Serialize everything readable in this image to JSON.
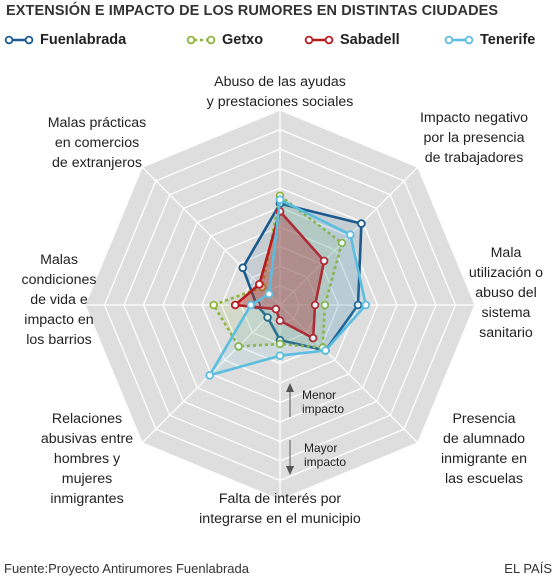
{
  "title": "EXTENSIÓN E IMPACTO DE LOS RUMORES EN DISTINTAS CIUDADES",
  "source": "Fuente:Proyecto Antirumores Fuenlabrada",
  "brand": "EL PAÍS",
  "notes": {
    "less": [
      "Menor",
      "impacto"
    ],
    "more": [
      "Mayor",
      "impacto"
    ]
  },
  "chart_data": {
    "type": "radar",
    "axes": [
      [
        "Abuso de las ayudas",
        "y prestaciones sociales"
      ],
      [
        "Impacto negativo",
        "por la presencia",
        "de trabajadores"
      ],
      [
        "Mala",
        "utilización o",
        "abuso del",
        "sistema",
        "sanitario"
      ],
      [
        "Presencia",
        "de alumnado",
        "inmigrante en",
        "las escuelas"
      ],
      [
        "Falta de interés por",
        "integrarse en el municipio"
      ],
      [
        "Relaciones",
        "abusivas entre",
        "hombres y",
        "mujeres",
        "inmigrantes"
      ],
      [
        "Malas",
        "condiciones",
        "de vida e",
        "impacto en",
        "los barrios"
      ],
      [
        "Malas prácticas",
        "en comercios",
        "de extranjeros"
      ]
    ],
    "scale": {
      "min": 0,
      "max": 10,
      "rings": 10,
      "note": "mayor valor = menor impacto (hacia el exterior)"
    },
    "series": [
      {
        "name": "Fuenlabrada",
        "color": "#1a5a8e",
        "dashed": false,
        "values": [
          5.2,
          5.9,
          4.0,
          3.3,
          1.8,
          0.9,
          1.2,
          2.7
        ]
      },
      {
        "name": "Getxo",
        "color": "#8fb43a",
        "dashed": true,
        "values": [
          5.6,
          4.5,
          2.3,
          3.1,
          2.0,
          3.0,
          3.4,
          1.3
        ]
      },
      {
        "name": "Sabadell",
        "color": "#b81a1e",
        "dashed": false,
        "values": [
          4.8,
          3.2,
          1.8,
          2.4,
          0.8,
          0.3,
          2.3,
          1.5
        ]
      },
      {
        "name": "Tenerife",
        "color": "#5bbde0",
        "dashed": false,
        "values": [
          5.4,
          5.1,
          4.4,
          3.3,
          2.6,
          5.1,
          1.5,
          0.8
        ]
      }
    ]
  }
}
